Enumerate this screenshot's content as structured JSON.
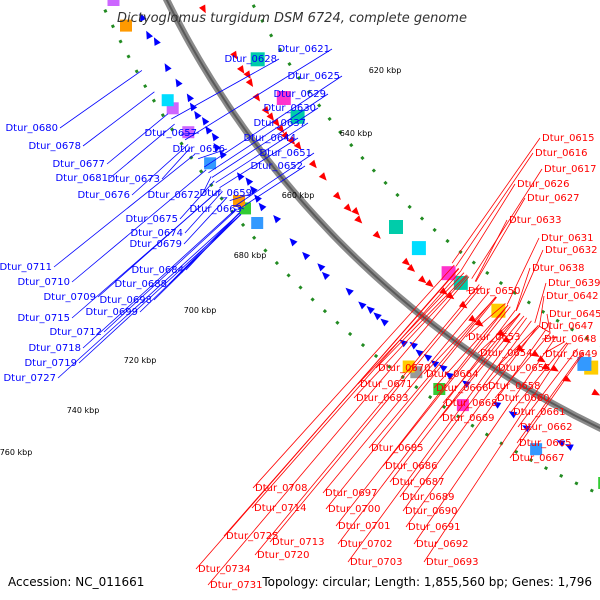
{
  "title": "Dictyoglomus turgidum DSM 6724, complete genome",
  "accession": "Accession: NC_011661",
  "summary": "Topology: circular; Length: 1,855,560 bp; Genes: 1,796",
  "colors": {
    "left": "#0000ff",
    "right": "#ff0000",
    "gc": "#228b22",
    "backbone": "#777777"
  },
  "ticks": [
    "620 kbp",
    "640 kbp",
    "660 kbp",
    "680 kbp",
    "700 kbp",
    "720 kbp",
    "740 kbp",
    "760 kbp"
  ],
  "left_labels": [
    "Dtur_0621",
    "Dtur_0628",
    "Dtur_0625",
    "Dtur_0629",
    "Dtur_0630",
    "Dtur_0637",
    "Dtur_0644",
    "Dtur_0657",
    "Dtur_0656",
    "Dtur_0651",
    "Dtur_0652",
    "Dtur_0680",
    "Dtur_0678",
    "Dtur_0677",
    "Dtur_0681",
    "Dtur_0673",
    "Dtur_0676",
    "Dtur_0672",
    "Dtur_0659",
    "Dtur_0663",
    "Dtur_0675",
    "Dtur_0674",
    "Dtur_0679",
    "Dtur_0711",
    "Dtur_0684",
    "Dtur_0710",
    "Dtur_0688",
    "Dtur_0709",
    "Dtur_0698",
    "Dtur_0699",
    "Dtur_0715",
    "Dtur_0712",
    "Dtur_0718",
    "Dtur_0719",
    "Dtur_0727"
  ],
  "right_labels": [
    "Dtur_0615",
    "Dtur_0616",
    "Dtur_0617",
    "Dtur_0626",
    "Dtur_0627",
    "Dtur_0633",
    "Dtur_0631",
    "Dtur_0632",
    "Dtur_0638",
    "Dtur_0639",
    "Dtur_0642",
    "Dtur_0650",
    "Dtur_0645",
    "Dtur_0647",
    "Dtur_0648",
    "Dtur_0649",
    "Dtur_0653",
    "Dtur_0654",
    "Dtur_0655",
    "Dtur_0670",
    "Dtur_0664",
    "Dtur_0671",
    "Dtur_0666",
    "Dtur_0658",
    "Dtur_0668",
    "Dtur_0660",
    "Dtur_0683",
    "Dtur_0669",
    "Dtur_0661",
    "Dtur_0662",
    "Dtur_0665",
    "Dtur_0667",
    "Dtur_0685",
    "Dtur_0686",
    "Dtur_0687",
    "Dtur_0708",
    "Dtur_0697",
    "Dtur_0689",
    "Dtur_0714",
    "Dtur_0700",
    "Dtur_0690",
    "Dtur_0701",
    "Dtur_0691",
    "Dtur_0725",
    "Dtur_0713",
    "Dtur_0702",
    "Dtur_0692",
    "Dtur_0720",
    "Dtur_0703",
    "Dtur_0693",
    "Dtur_0734",
    "Dtur_0731"
  ]
}
